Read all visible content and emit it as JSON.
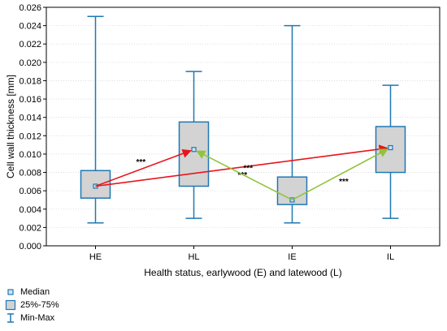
{
  "chart_data": {
    "type": "boxplot",
    "xlabel": "Health status, earlywood (E) and latewood (L)",
    "ylabel": "Cell wall thickness [mm]",
    "ylim": [
      0.0,
      0.026
    ],
    "yticks": [
      "0.000",
      "0.002",
      "0.004",
      "0.006",
      "0.008",
      "0.010",
      "0.012",
      "0.014",
      "0.016",
      "0.018",
      "0.020",
      "0.022",
      "0.024",
      "0.026"
    ],
    "categories": [
      "HE",
      "HL",
      "IE",
      "IL"
    ],
    "boxes": [
      {
        "category": "HE",
        "min": 0.0025,
        "q1": 0.0052,
        "median": 0.0065,
        "q3": 0.0082,
        "max": 0.025
      },
      {
        "category": "HL",
        "min": 0.003,
        "q1": 0.0065,
        "median": 0.0105,
        "q3": 0.0135,
        "max": 0.019
      },
      {
        "category": "IE",
        "min": 0.0025,
        "q1": 0.0045,
        "median": 0.005,
        "q3": 0.0075,
        "max": 0.024
      },
      {
        "category": "IL",
        "min": 0.003,
        "q1": 0.008,
        "median": 0.0107,
        "q3": 0.013,
        "max": 0.0175
      }
    ],
    "comparisons": [
      {
        "from": "HE",
        "to": "HL",
        "color": "#e8141b",
        "label": "***"
      },
      {
        "from": "HE",
        "to": "IL",
        "color": "#e8141b",
        "label": "***"
      },
      {
        "from": "IE",
        "to": "HL",
        "color": "#8fc43c",
        "label": "***"
      },
      {
        "from": "IE",
        "to": "IL",
        "color": "#8fc43c",
        "label": "***"
      }
    ],
    "colors": {
      "box_stroke": "#1f78b4",
      "box_fill": "#d3d3d3",
      "median_fill": "#d0e4f4"
    },
    "legend": {
      "placement": "bottom-left",
      "entries": [
        {
          "icon": "median-marker",
          "label": "Median"
        },
        {
          "icon": "box-swatch",
          "label": "25%-75%"
        },
        {
          "icon": "whisker-icon",
          "label": "Min-Max"
        }
      ]
    }
  }
}
